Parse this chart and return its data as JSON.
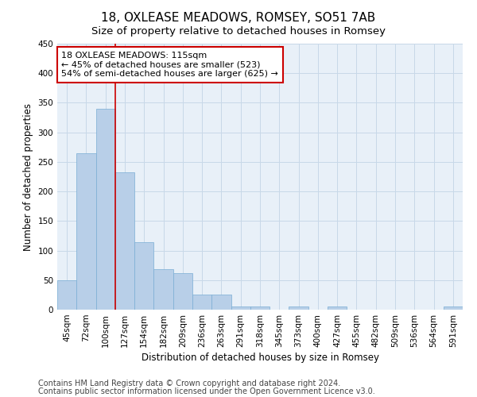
{
  "title": "18, OXLEASE MEADOWS, ROMSEY, SO51 7AB",
  "subtitle": "Size of property relative to detached houses in Romsey",
  "xlabel": "Distribution of detached houses by size in Romsey",
  "ylabel": "Number of detached properties",
  "categories": [
    "45sqm",
    "72sqm",
    "100sqm",
    "127sqm",
    "154sqm",
    "182sqm",
    "209sqm",
    "236sqm",
    "263sqm",
    "291sqm",
    "318sqm",
    "345sqm",
    "373sqm",
    "400sqm",
    "427sqm",
    "455sqm",
    "482sqm",
    "509sqm",
    "536sqm",
    "564sqm",
    "591sqm"
  ],
  "bar_heights": [
    50,
    265,
    340,
    233,
    114,
    68,
    62,
    25,
    25,
    6,
    6,
    0,
    5,
    0,
    5,
    0,
    0,
    0,
    0,
    0,
    5
  ],
  "bar_color": "#b8cfe8",
  "bar_edge_color": "#7aadd4",
  "property_line_x": 2.5,
  "annotation_text": "18 OXLEASE MEADOWS: 115sqm\n← 45% of detached houses are smaller (523)\n54% of semi-detached houses are larger (625) →",
  "annotation_box_color": "#ffffff",
  "annotation_border_color": "#cc0000",
  "ylim": [
    0,
    450
  ],
  "yticks": [
    0,
    50,
    100,
    150,
    200,
    250,
    300,
    350,
    400,
    450
  ],
  "grid_color": "#c8d8e8",
  "background_color": "#e8f0f8",
  "footer_line1": "Contains HM Land Registry data © Crown copyright and database right 2024.",
  "footer_line2": "Contains public sector information licensed under the Open Government Licence v3.0.",
  "title_fontsize": 11,
  "subtitle_fontsize": 9.5,
  "xlabel_fontsize": 8.5,
  "ylabel_fontsize": 8.5,
  "tick_fontsize": 7.5,
  "annotation_fontsize": 8,
  "footer_fontsize": 7
}
